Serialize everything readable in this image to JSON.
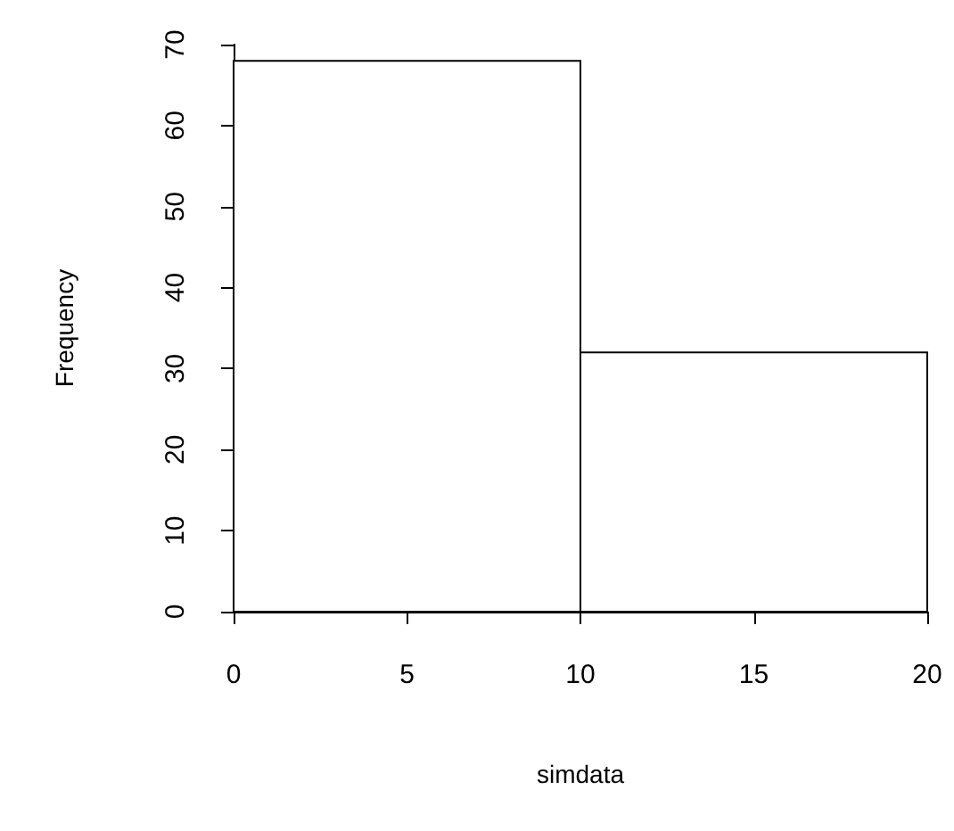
{
  "chart_data": {
    "type": "histogram",
    "xlabel": "simdata",
    "ylabel": "Frequency",
    "bins": [
      0,
      10,
      20
    ],
    "values": [
      68,
      32
    ],
    "color": "#ffffff",
    "xlim": [
      0,
      20
    ],
    "xticks": [
      0,
      5,
      10,
      15,
      20
    ],
    "ylim": [
      0,
      70
    ],
    "yticks": [
      0,
      10,
      20,
      30,
      40,
      50,
      60,
      70
    ],
    "grid": false
  }
}
